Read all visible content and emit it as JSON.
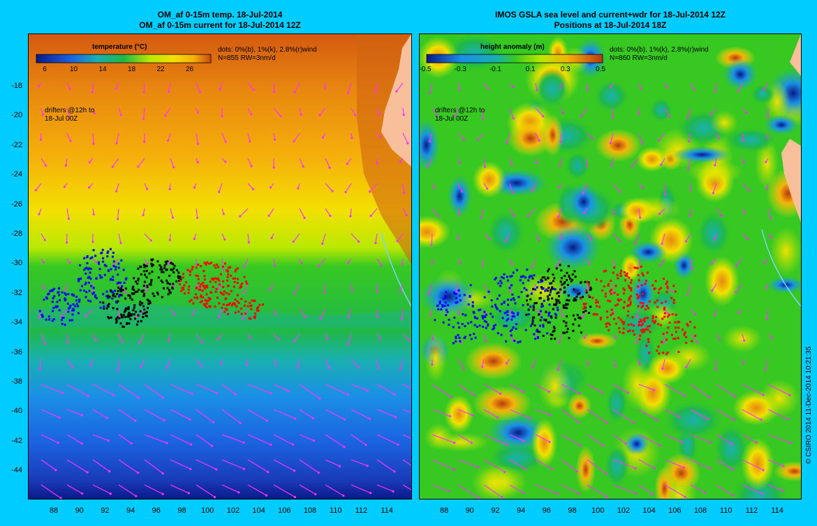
{
  "left_panel": {
    "title_line1": "OM_af 0-15m temp. 18-Jul-2014",
    "title_line2": "OM_af 0-15m current for 18-Jul-2014 12Z",
    "colorbar_title": "temperature (°C)",
    "colorbar_ticks": [
      "6",
      "10",
      "14",
      "18",
      "22",
      "26"
    ],
    "dots_note": "dots: 0%(b), 1%(k), 2.8%(r)wind",
    "n_note": "N=855 RW=3nm/d",
    "drifters_note_line1": "drifters @12h to",
    "drifters_note_line2": "18-Jul 00Z"
  },
  "right_panel": {
    "title_line1": "IMOS GSLA sea level and current+wdr for 18-Jul-2014 12Z",
    "title_line2": "Positions at 18-Jul-2014 18Z",
    "colorbar_title": "height anomaly (m)",
    "colorbar_ticks": [
      "-0.5",
      "-0.3",
      "-0.1",
      "0.1",
      "0.3",
      "0.5"
    ],
    "dots_note": "dots: 0%(b), 1%(k), 2.8%(r)wind",
    "n_note": "N=860 RW=3nm/d",
    "drifters_note_line1": "drifters @12h to",
    "drifters_note_line2": "18-Jul 00Z"
  },
  "axes": {
    "y_ticks": [
      "-18",
      "-20",
      "-22",
      "-24",
      "-26",
      "-28",
      "-30",
      "-32",
      "-34",
      "-36",
      "-38",
      "-40",
      "-42",
      "-44"
    ],
    "x_ticks": [
      "88",
      "90",
      "92",
      "94",
      "96",
      "98",
      "100",
      "102",
      "104",
      "106",
      "108",
      "110",
      "112",
      "114"
    ]
  },
  "credit": "© CSIRO 2014   11-Dec-2014 10:21:35",
  "colors": {
    "background": "#00ccff",
    "land": "#f8c09a",
    "arrow": "#ff33ff",
    "dot_blue": "#0000ff",
    "dot_black": "#000000",
    "dot_red": "#ff0000"
  }
}
